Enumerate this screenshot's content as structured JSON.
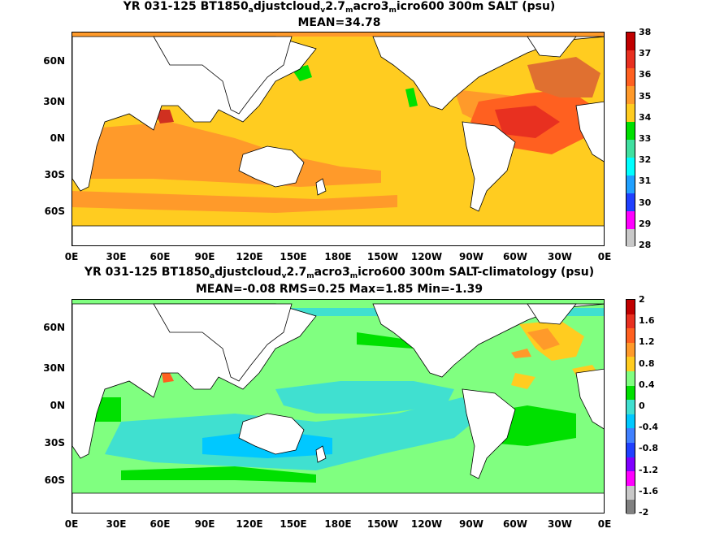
{
  "top": {
    "title_pre": "YR 031-125 BT1850",
    "title_sub1": "a",
    "title_mid1": "djustcloud",
    "title_sub2": "v",
    "title_mid2": "2.7",
    "title_sub3": "m",
    "title_mid3": "acro3",
    "title_sub4": "m",
    "title_post": "icro600 300m SALT (psu)",
    "stats": "MEAN=34.78",
    "colorbar_labels": [
      "38",
      "37",
      "36",
      "35",
      "34",
      "33",
      "32",
      "31",
      "30",
      "29",
      "28"
    ],
    "colorbar_colors": [
      "#c00000",
      "#e83020",
      "#ff6020",
      "#ff9a2a",
      "#ffcc20",
      "#00e000",
      "#40e0a0",
      "#00ffff",
      "#20a0ff",
      "#2040ff",
      "#ff00ff",
      "#c8c8c8"
    ]
  },
  "bottom": {
    "title_pre": "YR 031-125 BT1850",
    "title_sub1": "a",
    "title_mid1": "djustcloud",
    "title_sub2": "v",
    "title_mid2": "2.7",
    "title_sub3": "m",
    "title_mid3": "acro3",
    "title_sub4": "m",
    "title_post": "icro600 300m SALT-climatology (psu)",
    "stats": "MEAN=-0.08   RMS=0.25   Max=1.85   Min=-1.39",
    "colorbar_labels": [
      "2",
      "1.6",
      "1.2",
      "0.8",
      "0.4",
      "0",
      "-0.4",
      "-0.8",
      "-1.2",
      "-1.6",
      "-2"
    ],
    "colorbar_colors": [
      "#c00000",
      "#e83020",
      "#ff6020",
      "#ff9a2a",
      "#ffcc20",
      "#80ff80",
      "#00e000",
      "#40e0d0",
      "#00c8ff",
      "#4080ff",
      "#2040ff",
      "#8000ff",
      "#ff00ff",
      "#c8c8c8",
      "#808080"
    ]
  },
  "lat_labels": [
    "60N",
    "30N",
    "0N",
    "30S",
    "60S"
  ],
  "lon_labels": [
    "0E",
    "30E",
    "60E",
    "90E",
    "120E",
    "150E",
    "180E",
    "150W",
    "120W",
    "90W",
    "60W",
    "30W",
    "0E"
  ]
}
